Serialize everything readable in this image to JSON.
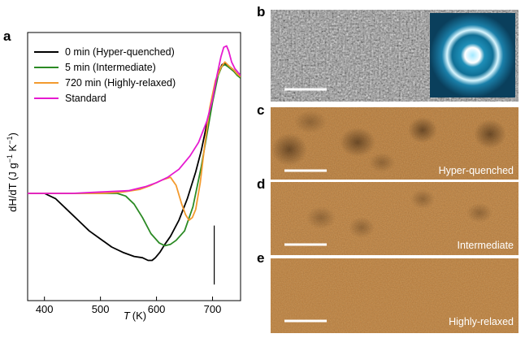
{
  "panel_labels": [
    "a",
    "b",
    "c",
    "d",
    "e"
  ],
  "chart_data": {
    "type": "line",
    "xlabel": "T",
    "xlabel_unit": "(K)",
    "ylabel": "dH/dT (J g",
    "ylabel_exp1": "−1",
    "ylabel_mid": " K",
    "ylabel_exp2": "−1",
    "ylabel_end": ")",
    "xlim": [
      370,
      750
    ],
    "xticks": [
      400,
      500,
      600,
      700
    ],
    "ylim": [
      0,
      1
    ],
    "yticks_shown": false,
    "legend_position": "top-left",
    "scale_bar": {
      "x": 703,
      "y0": 0.06,
      "y1": 0.28
    },
    "series": [
      {
        "name": "0 min (Hyper-quenched)",
        "color": "#000000",
        "x": [
          370,
          400,
          420,
          440,
          460,
          480,
          500,
          520,
          540,
          560,
          575,
          585,
          592,
          598,
          606,
          615,
          625,
          640,
          655,
          670,
          680,
          690,
          700,
          710,
          717,
          722,
          726,
          732,
          738,
          744,
          750
        ],
        "y": [
          0.4,
          0.4,
          0.38,
          0.34,
          0.3,
          0.26,
          0.23,
          0.2,
          0.18,
          0.165,
          0.16,
          0.15,
          0.15,
          0.16,
          0.18,
          0.21,
          0.24,
          0.3,
          0.38,
          0.48,
          0.56,
          0.66,
          0.76,
          0.85,
          0.88,
          0.885,
          0.88,
          0.87,
          0.86,
          0.845,
          0.83
        ]
      },
      {
        "name": "5 min (Intermediate)",
        "color": "#2b8a24",
        "x": [
          370,
          400,
          450,
          500,
          530,
          545,
          560,
          575,
          590,
          605,
          615,
          625,
          635,
          650,
          665,
          680,
          690,
          700,
          710,
          717,
          722,
          726,
          732,
          738,
          744,
          750
        ],
        "y": [
          0.4,
          0.4,
          0.4,
          0.4,
          0.4,
          0.39,
          0.36,
          0.31,
          0.25,
          0.215,
          0.205,
          0.21,
          0.225,
          0.26,
          0.35,
          0.5,
          0.62,
          0.74,
          0.84,
          0.875,
          0.88,
          0.875,
          0.865,
          0.855,
          0.84,
          0.83
        ]
      },
      {
        "name": "720 min (Highly-relaxed)",
        "color": "#f39a2e",
        "x": [
          370,
          400,
          450,
          500,
          540,
          570,
          590,
          610,
          625,
          635,
          645,
          652,
          658,
          664,
          670,
          678,
          686,
          695,
          705,
          715,
          722,
          727,
          732,
          738,
          744,
          750
        ],
        "y": [
          0.4,
          0.4,
          0.4,
          0.4,
          0.405,
          0.415,
          0.43,
          0.45,
          0.46,
          0.43,
          0.36,
          0.32,
          0.3,
          0.31,
          0.34,
          0.44,
          0.58,
          0.72,
          0.82,
          0.87,
          0.89,
          0.88,
          0.87,
          0.86,
          0.845,
          0.835
        ]
      },
      {
        "name": "Standard",
        "color": "#e61ad0",
        "x": [
          370,
          400,
          450,
          500,
          550,
          580,
          600,
          620,
          640,
          660,
          675,
          690,
          700,
          708,
          715,
          720,
          725,
          729,
          734,
          740,
          746,
          750
        ],
        "y": [
          0.4,
          0.4,
          0.4,
          0.405,
          0.41,
          0.425,
          0.44,
          0.46,
          0.49,
          0.54,
          0.59,
          0.67,
          0.75,
          0.84,
          0.91,
          0.945,
          0.95,
          0.93,
          0.89,
          0.865,
          0.85,
          0.84
        ]
      }
    ]
  },
  "images": {
    "b": {
      "description_type": "hrtem",
      "scale_bar": true
    },
    "c": {
      "caption": "Hyper-quenched",
      "scale_bar": true
    },
    "d": {
      "caption": "Intermediate",
      "scale_bar": true
    },
    "e": {
      "caption": "Highly-relaxed",
      "scale_bar": true
    }
  },
  "colors": {
    "hrtem_bg": "#9a9a9a",
    "stem_base": "#b77a3a",
    "diffraction_bg": "#0b4a68",
    "diffraction_ring": "#d8f6ff"
  }
}
